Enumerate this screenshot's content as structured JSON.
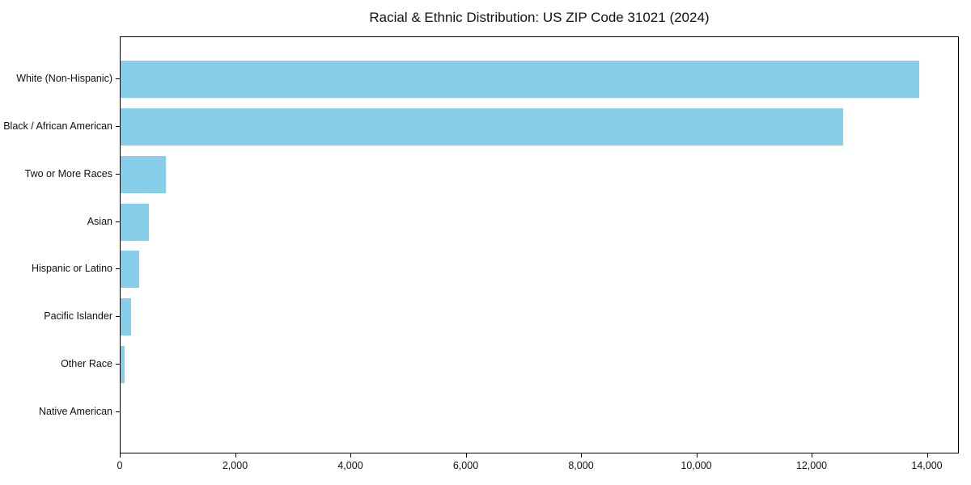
{
  "chart_data": {
    "type": "bar",
    "orientation": "horizontal",
    "title": "Racial & Ethnic Distribution: US ZIP Code 31021 (2024)",
    "categories": [
      "White (Non-Hispanic)",
      "Black / African American",
      "Two or More Races",
      "Asian",
      "Hispanic or Latino",
      "Pacific Islander",
      "Other Race",
      "Native American"
    ],
    "values": [
      13860,
      12550,
      780,
      490,
      320,
      180,
      65,
      0
    ],
    "xlabel": "",
    "ylabel": "",
    "xlim": [
      0,
      14540
    ],
    "x_ticks": [
      0,
      2000,
      4000,
      6000,
      8000,
      10000,
      12000,
      14000
    ],
    "x_tick_labels": [
      "0",
      "2,000",
      "4,000",
      "6,000",
      "8,000",
      "10,000",
      "12,000",
      "14,000"
    ],
    "bar_color": "#87CEEB",
    "axis_color": "#000000",
    "grid": false,
    "legend_position": "none"
  }
}
